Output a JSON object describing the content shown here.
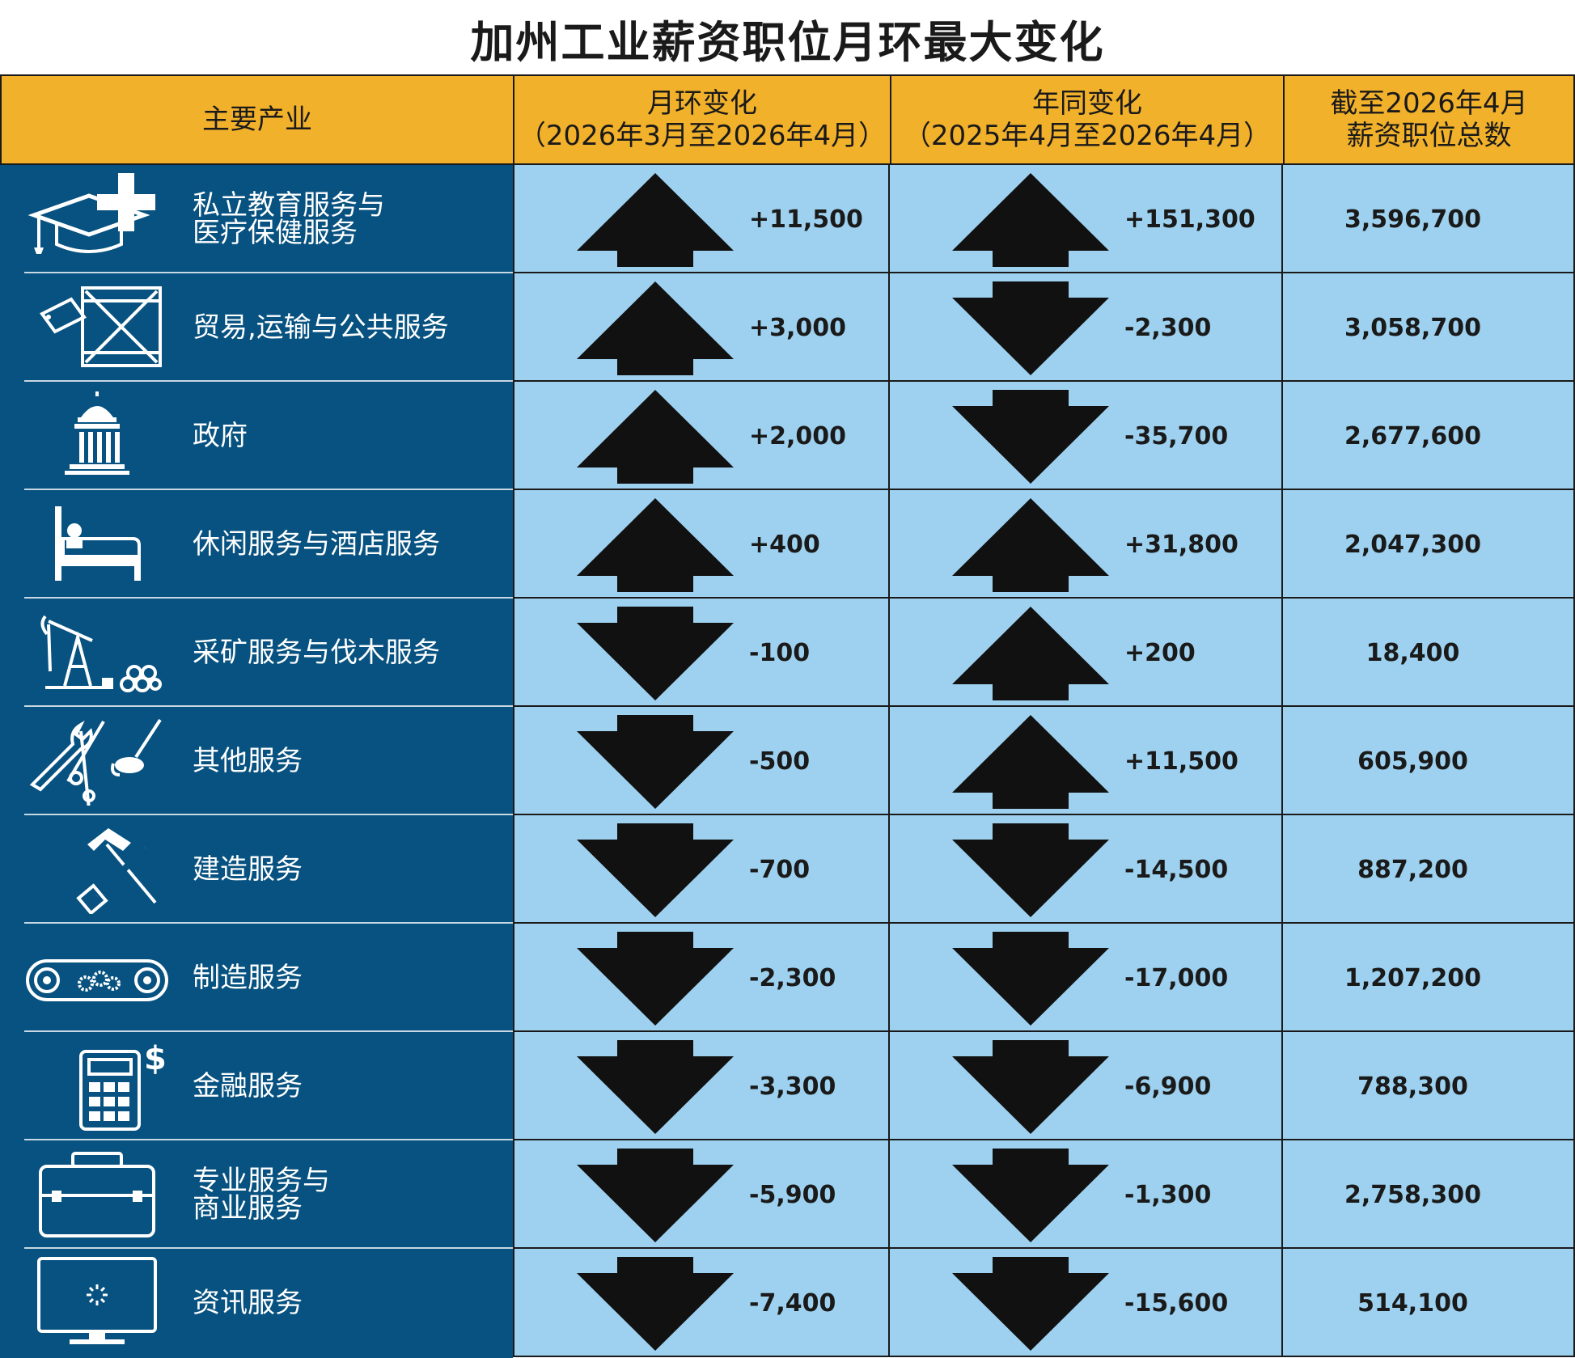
{
  "title": "加州工业薪资职位月环最大变化",
  "headers": {
    "industry": "主要产业",
    "mom_line1": "月环变化",
    "mom_line2": "（2026年3月至2026年4月）",
    "yoy_line1": "年同变化",
    "yoy_line2": "（2025年4月至2026年4月）",
    "total_line1": "截至2026年4月",
    "total_line2": "薪资职位总数"
  },
  "colors": {
    "header": "#f2b12b",
    "industry_bg": "#075280",
    "cell_bg": "#9dd1ef",
    "arrow": "#111111"
  },
  "rows": [
    {
      "icon": "education-health-icon",
      "label1": "私立教育服务与",
      "label2": "医疗保健服务",
      "mom": "+11,500",
      "mom_dir": "up",
      "yoy": "+151,300",
      "yoy_dir": "up",
      "total": "3,596,700"
    },
    {
      "icon": "shipping-crate-icon",
      "label1": "贸易,运输与公共服务",
      "label2": "",
      "mom": "+3,000",
      "mom_dir": "up",
      "yoy": "-2,300",
      "yoy_dir": "down",
      "total": "3,058,700"
    },
    {
      "icon": "government-building-icon",
      "label1": "政府",
      "label2": "",
      "mom": "+2,000",
      "mom_dir": "up",
      "yoy": "-35,700",
      "yoy_dir": "down",
      "total": "2,677,600"
    },
    {
      "icon": "bed-icon",
      "label1": "休闲服务与酒店服务",
      "label2": "",
      "mom": "+400",
      "mom_dir": "up",
      "yoy": "+31,800",
      "yoy_dir": "up",
      "total": "2,047,300"
    },
    {
      "icon": "oil-pump-logs-icon",
      "label1": "采矿服务与伐木服务",
      "label2": "",
      "mom": "-100",
      "mom_dir": "down",
      "yoy": "+200",
      "yoy_dir": "up",
      "total": "18,400"
    },
    {
      "icon": "tools-icon",
      "label1": "其他服务",
      "label2": "",
      "mom": "-500",
      "mom_dir": "down",
      "yoy": "+11,500",
      "yoy_dir": "up",
      "total": "605,900"
    },
    {
      "icon": "hammer-saw-icon",
      "label1": "建造服务",
      "label2": "",
      "mom": "-700",
      "mom_dir": "down",
      "yoy": "-14,500",
      "yoy_dir": "down",
      "total": "887,200"
    },
    {
      "icon": "conveyor-gears-icon",
      "label1": "制造服务",
      "label2": "",
      "mom": "-2,300",
      "mom_dir": "down",
      "yoy": "-17,000",
      "yoy_dir": "down",
      "total": "1,207,200"
    },
    {
      "icon": "calculator-dollar-icon",
      "label1": "金融服务",
      "label2": "",
      "mom": "-3,300",
      "mom_dir": "down",
      "yoy": "-6,900",
      "yoy_dir": "down",
      "total": "788,300"
    },
    {
      "icon": "toolbox-icon",
      "label1": "专业服务与",
      "label2": "商业服务",
      "mom": "-5,900",
      "mom_dir": "down",
      "yoy": "-1,300",
      "yoy_dir": "down",
      "total": "2,758,300"
    },
    {
      "icon": "monitor-icon",
      "label1": "资讯服务",
      "label2": "",
      "mom": "-7,400",
      "mom_dir": "down",
      "yoy": "-15,600",
      "yoy_dir": "down",
      "total": "514,100"
    }
  ]
}
